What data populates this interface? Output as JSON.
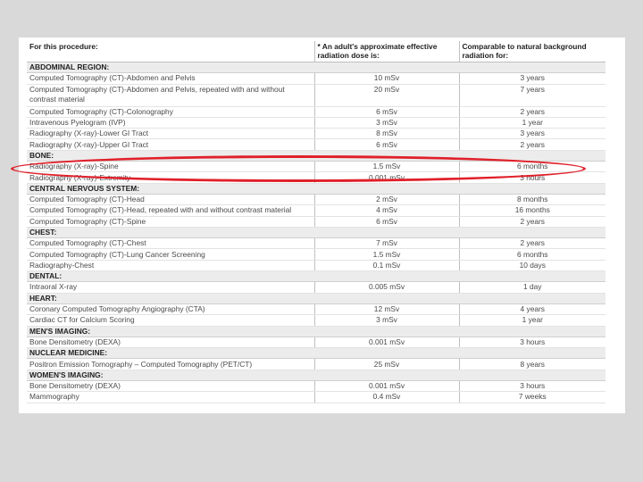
{
  "header": {
    "procedure": "For this procedure:",
    "dose": "* An adult's approximate effective radiation dose is:",
    "comparable": "Comparable to natural background radiation for:"
  },
  "rows": [
    {
      "type": "section",
      "label": "ABDOMINAL REGION:"
    },
    {
      "type": "row",
      "procedure": "Computed Tomography (CT)-Abdomen and Pelvis",
      "dose": "10 mSv",
      "comparable": "3 years"
    },
    {
      "type": "row",
      "procedure": "Computed Tomography (CT)-Abdomen and Pelvis, repeated with and without contrast material",
      "dose": "20 mSv",
      "comparable": "7 years",
      "tall": true
    },
    {
      "type": "row",
      "procedure": "Computed Tomography (CT)-Colonography",
      "dose": "6 mSv",
      "comparable": "2 years"
    },
    {
      "type": "row",
      "procedure": "Intravenous Pyelogram (IVP)",
      "dose": "3 mSv",
      "comparable": "1 year"
    },
    {
      "type": "row",
      "procedure": "Radiography (X-ray)-Lower GI Tract",
      "dose": "8 mSv",
      "comparable": "3 years"
    },
    {
      "type": "row",
      "procedure": "Radiography (X-ray)-Upper GI Tract",
      "dose": "6 mSv",
      "comparable": "2 years"
    },
    {
      "type": "section",
      "label": "BONE:"
    },
    {
      "type": "row",
      "procedure": "Radiography (X-ray)-Spine",
      "dose": "1.5 mSv",
      "comparable": "6 months"
    },
    {
      "type": "row",
      "procedure": "Radiography (X-ray)-Extremity",
      "dose": "0.001 mSv",
      "comparable": "3 hours"
    },
    {
      "type": "section",
      "label": "CENTRAL NERVOUS SYSTEM:"
    },
    {
      "type": "row",
      "procedure": "Computed Tomography (CT)-Head",
      "dose": "2 mSv",
      "comparable": "8 months"
    },
    {
      "type": "row",
      "procedure": "Computed Tomography (CT)-Head, repeated with and without contrast material",
      "dose": "4 mSv",
      "comparable": "16 months"
    },
    {
      "type": "row",
      "procedure": "Computed Tomography (CT)-Spine",
      "dose": "6 mSv",
      "comparable": "2 years"
    },
    {
      "type": "section",
      "label": "CHEST:"
    },
    {
      "type": "row",
      "procedure": "Computed Tomography (CT)-Chest",
      "dose": "7 mSv",
      "comparable": "2 years"
    },
    {
      "type": "row",
      "procedure": "Computed Tomography (CT)-Lung Cancer Screening",
      "dose": "1.5 mSv",
      "comparable": "6 months"
    },
    {
      "type": "row",
      "procedure": "Radiography-Chest",
      "dose": "0.1 mSv",
      "comparable": "10 days"
    },
    {
      "type": "section",
      "label": "DENTAL:"
    },
    {
      "type": "row",
      "procedure": "Intraoral X-ray",
      "dose": "0.005 mSv",
      "comparable": "1 day"
    },
    {
      "type": "section",
      "label": "HEART:"
    },
    {
      "type": "row",
      "procedure": "Coronary Computed Tomography Angiography (CTA)",
      "dose": "12 mSv",
      "comparable": "4 years"
    },
    {
      "type": "row",
      "procedure": "Cardiac CT for Calcium Scoring",
      "dose": "3 mSv",
      "comparable": "1 year"
    },
    {
      "type": "section",
      "label": "MEN'S IMAGING:"
    },
    {
      "type": "row",
      "procedure": "Bone Densitometry (DEXA)",
      "dose": "0.001 mSv",
      "comparable": "3 hours"
    },
    {
      "type": "section",
      "label": "NUCLEAR MEDICINE:"
    },
    {
      "type": "row",
      "procedure": "Positron Emission Tomography – Computed Tomography (PET/CT)",
      "dose": "25 mSv",
      "comparable": "8 years"
    },
    {
      "type": "section",
      "label": "WOMEN'S IMAGING:"
    },
    {
      "type": "row",
      "procedure": "Bone Densitometry (DEXA)",
      "dose": "0.001 mSv",
      "comparable": "3 hours"
    },
    {
      "type": "row",
      "procedure": "Mammography",
      "dose": "0.4 mSv",
      "comparable": "7 weeks"
    }
  ],
  "highlight": {
    "row": "Radiography (X-ray)-Spine",
    "color": "#e0202a"
  },
  "colors": {
    "background": "#d9d9d9",
    "section_fill": "#ececec"
  }
}
